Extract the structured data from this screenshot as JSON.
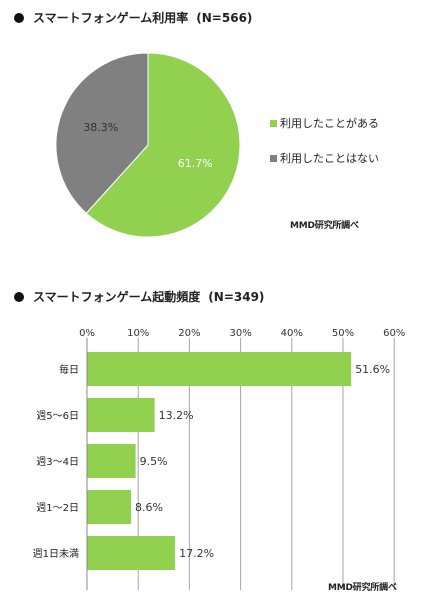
{
  "chart_data": [
    {
      "type": "pie",
      "title": "スマートフォンゲーム利用率",
      "sample": "(N=566)",
      "slices": [
        {
          "label": "利用したことがある",
          "value": 61.7,
          "value_label": "61.7%",
          "color": "#92d050"
        },
        {
          "label": "利用したことはない",
          "value": 38.3,
          "value_label": "38.3%",
          "color": "#808080"
        }
      ],
      "legend_position": "right",
      "source": "MMD研究所調べ"
    },
    {
      "type": "bar",
      "orientation": "horizontal",
      "title": "スマートフォンゲーム起動頻度",
      "sample": "(N=349)",
      "categories": [
        "毎日",
        "週5～6日",
        "週3～4日",
        "週1～2日",
        "週1日未満"
      ],
      "values": [
        51.6,
        13.2,
        9.5,
        8.6,
        17.2
      ],
      "value_labels": [
        "51.6%",
        "13.2%",
        "9.5%",
        "8.6%",
        "17.2%"
      ],
      "xlim": [
        0,
        60
      ],
      "ticks": [
        "0%",
        "10%",
        "20%",
        "30%",
        "40%",
        "50%",
        "60%"
      ],
      "tick_values": [
        0,
        10,
        20,
        30,
        40,
        50,
        60
      ],
      "grid": true,
      "bar_color": "#92d050",
      "source": "MMD研究所調べ"
    }
  ]
}
